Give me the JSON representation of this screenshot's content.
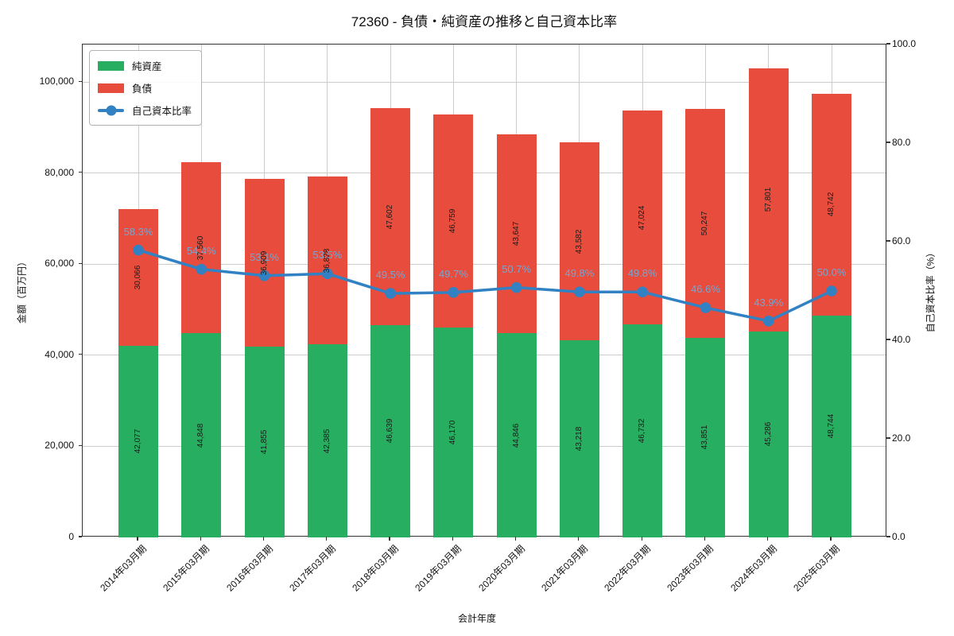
{
  "chart_data": {
    "type": "bar",
    "variant": "stacked-bars-with-line-overlay",
    "title": "72360 - 負債・純資産の推移と自己資本比率",
    "xlabel": "会計年度",
    "ylabel_left": "金額（百万円）",
    "ylabel_right": "自己資本比率（%）",
    "categories": [
      "2014年03月期",
      "2015年03月期",
      "2016年03月期",
      "2017年03月期",
      "2018年03月期",
      "2019年03月期",
      "2020年03月期",
      "2021年03月期",
      "2022年03月期",
      "2023年03月期",
      "2024年03月期",
      "2025年03月期"
    ],
    "series": [
      {
        "name": "純資産",
        "type": "bar",
        "stack": "total",
        "color": "#27ae60",
        "values": [
          42077,
          44848,
          41855,
          42385,
          46639,
          46170,
          44846,
          43218,
          46732,
          43851,
          45286,
          48744
        ],
        "labels": [
          "42,077",
          "44,848",
          "41,855",
          "42,385",
          "46,639",
          "46,170",
          "44,846",
          "43,218",
          "46,732",
          "43,851",
          "45,286",
          "48,744"
        ]
      },
      {
        "name": "負債",
        "type": "bar",
        "stack": "total",
        "color": "#e74c3c",
        "values": [
          30066,
          37560,
          36909,
          36828,
          47602,
          46759,
          43647,
          43582,
          47024,
          50247,
          57801,
          48742
        ],
        "labels": [
          "30,066",
          "37,560",
          "36,909",
          "36,828",
          "47,602",
          "46,759",
          "43,647",
          "43,582",
          "47,024",
          "50,247",
          "57,801",
          "48,742"
        ]
      },
      {
        "name": "自己資本比率",
        "type": "line",
        "axis": "right",
        "color": "#3282c3",
        "values": [
          58.3,
          54.4,
          53.1,
          53.5,
          49.5,
          49.7,
          50.7,
          49.8,
          49.8,
          46.6,
          43.9,
          50.0
        ],
        "labels": [
          "58.3%",
          "54.4%",
          "53.1%",
          "53.5%",
          "49.5%",
          "49.7%",
          "50.7%",
          "49.8%",
          "49.8%",
          "46.6%",
          "43.9%",
          "50.0%"
        ]
      }
    ],
    "ylim_left": [
      0,
      108241
    ],
    "ylim_right": [
      0,
      100
    ],
    "yticks_left": [
      "0",
      "20,000",
      "40,000",
      "60,000",
      "80,000",
      "100,000"
    ],
    "yticks_right": [
      "0.0",
      "20.0",
      "40.0",
      "60.0",
      "80.0",
      "100.0"
    ],
    "grid": true,
    "legend_position": "upper left"
  },
  "colors": {
    "net_assets": "#27ae60",
    "liabilities": "#e74c3c",
    "ratio_line": "#3282c3",
    "ratio_label": "#74a7d4",
    "grid": "#cccccc",
    "axis": "#333333",
    "background": "#ffffff"
  }
}
